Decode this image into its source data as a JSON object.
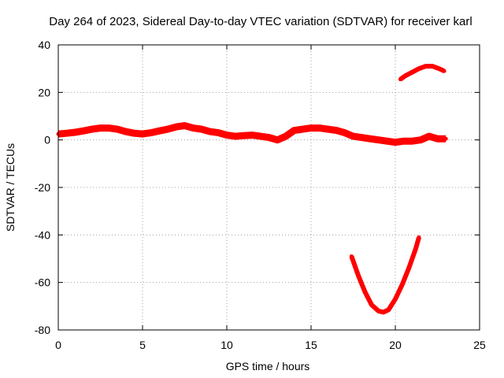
{
  "chart_data": {
    "type": "scatter",
    "title": "Day 264 of 2023, Sidereal Day-to-day VTEC variation (SDTVAR) for receiver karl",
    "xlabel": "GPS time / hours",
    "ylabel": "SDTVAR / TECUs",
    "xlim": [
      0,
      25
    ],
    "ylim": [
      -80,
      40
    ],
    "x_ticks": [
      0,
      5,
      10,
      15,
      20,
      25
    ],
    "y_ticks": [
      -80,
      -60,
      -40,
      -20,
      0,
      20,
      40
    ],
    "x_tick_labels": [
      "0",
      "5",
      "10",
      "15",
      "20",
      "25"
    ],
    "y_tick_labels": [
      "-80",
      "-60",
      "-40",
      "-20",
      "0",
      "20",
      "40"
    ],
    "grid": true,
    "colors": {
      "series": "#ff0000",
      "grid": "#a0a0a0",
      "axis": "#000000"
    },
    "series": [
      {
        "name": "main",
        "x": [
          0,
          0.5,
          1,
          1.5,
          2,
          2.5,
          3,
          3.5,
          4,
          4.5,
          5,
          5.5,
          6,
          6.5,
          7,
          7.5,
          8,
          8.5,
          9,
          9.5,
          10,
          10.5,
          11,
          11.5,
          12,
          12.5,
          13,
          13.5,
          14,
          14.5,
          15,
          15.5,
          16,
          16.5,
          17,
          17.5,
          18,
          18.5,
          19,
          19.5,
          20,
          20.5,
          21,
          21.5,
          22,
          22.5,
          23
        ],
        "y": [
          2.5,
          2.8,
          3.2,
          3.8,
          4.5,
          5,
          5,
          4.5,
          3.5,
          2.8,
          2.5,
          3,
          3.8,
          4.5,
          5.5,
          6,
          5,
          4.5,
          3.5,
          3,
          2,
          1.5,
          1.8,
          2,
          1.5,
          1,
          0,
          1.5,
          4,
          4.5,
          5,
          5,
          4.5,
          4,
          3,
          1.5,
          1,
          0.5,
          0,
          -0.5,
          -1,
          -0.5,
          -0.5,
          0,
          1.5,
          0.5,
          0.5
        ]
      },
      {
        "name": "upper-arc",
        "x": [
          20.3,
          20.6,
          21,
          21.4,
          21.8,
          22.2,
          22.6,
          22.9
        ],
        "y": [
          25.5,
          27,
          28.5,
          30,
          31,
          31,
          30,
          29
        ]
      },
      {
        "name": "lower-arc",
        "x": [
          17.4,
          17.8,
          18.2,
          18.6,
          19,
          19.3,
          19.6,
          20,
          20.4,
          20.8,
          21.2,
          21.4
        ],
        "y": [
          -49,
          -57,
          -64,
          -69.5,
          -72,
          -72.5,
          -71.5,
          -67,
          -61,
          -54,
          -46,
          -41
        ]
      }
    ]
  }
}
